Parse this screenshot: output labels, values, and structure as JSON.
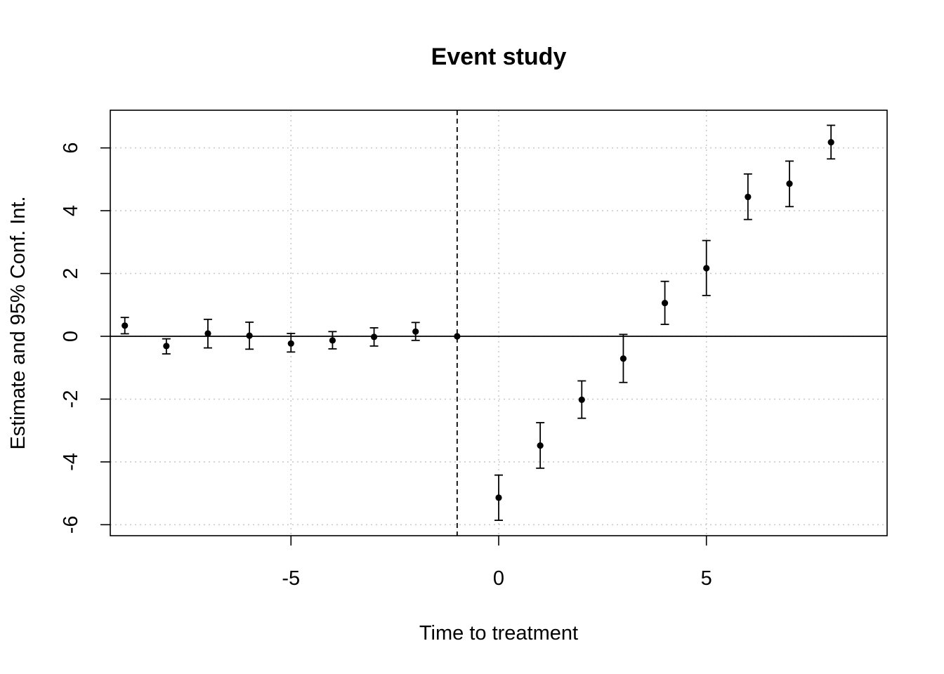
{
  "chart_data": {
    "type": "scatter",
    "title": "Event study",
    "xlabel": "Time to treatment",
    "ylabel": "Estimate and 95% Conf. Int.",
    "xlim": [
      -9.35,
      9.35
    ],
    "ylim": [
      -6.35,
      7.2
    ],
    "x_ticks": [
      -5,
      0,
      5
    ],
    "x_tick_labels": [
      "-5",
      "0",
      "5"
    ],
    "y_ticks": [
      -6,
      -4,
      -2,
      0,
      2,
      4,
      6
    ],
    "y_tick_labels": [
      "-6",
      "-4",
      "-2",
      "0",
      "2",
      "4",
      "6"
    ],
    "grid": true,
    "reference_hline": 0,
    "reference_vline": -1,
    "points": [
      {
        "x": -9,
        "est": 0.34,
        "lo": 0.08,
        "hi": 0.6
      },
      {
        "x": -8,
        "est": -0.31,
        "lo": -0.56,
        "hi": -0.08
      },
      {
        "x": -7,
        "est": 0.09,
        "lo": -0.37,
        "hi": 0.54
      },
      {
        "x": -6,
        "est": 0.02,
        "lo": -0.41,
        "hi": 0.45
      },
      {
        "x": -5,
        "est": -0.23,
        "lo": -0.5,
        "hi": 0.09
      },
      {
        "x": -4,
        "est": -0.13,
        "lo": -0.4,
        "hi": 0.15
      },
      {
        "x": -3,
        "est": -0.02,
        "lo": -0.31,
        "hi": 0.27
      },
      {
        "x": -2,
        "est": 0.15,
        "lo": -0.13,
        "hi": 0.44
      },
      {
        "x": -1,
        "est": 0.0,
        "lo": 0.0,
        "hi": 0.0
      },
      {
        "x": 0,
        "est": -5.14,
        "lo": -5.86,
        "hi": -4.42
      },
      {
        "x": 1,
        "est": -3.48,
        "lo": -4.2,
        "hi": -2.75
      },
      {
        "x": 2,
        "est": -2.02,
        "lo": -2.61,
        "hi": -1.42
      },
      {
        "x": 3,
        "est": -0.71,
        "lo": -1.47,
        "hi": 0.06
      },
      {
        "x": 4,
        "est": 1.06,
        "lo": 0.38,
        "hi": 1.75
      },
      {
        "x": 5,
        "est": 2.17,
        "lo": 1.3,
        "hi": 3.05
      },
      {
        "x": 6,
        "est": 4.44,
        "lo": 3.72,
        "hi": 5.17
      },
      {
        "x": 7,
        "est": 4.86,
        "lo": 4.13,
        "hi": 5.58
      },
      {
        "x": 8,
        "est": 6.18,
        "lo": 5.65,
        "hi": 6.72
      }
    ]
  }
}
